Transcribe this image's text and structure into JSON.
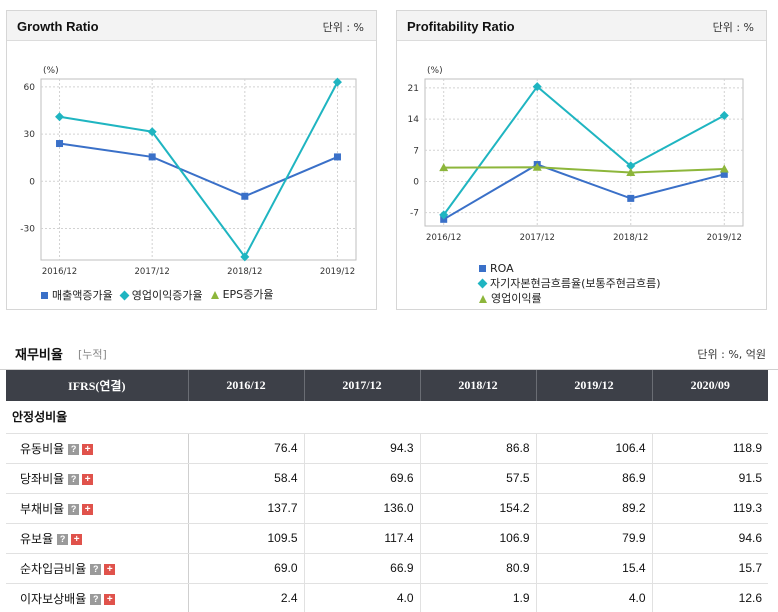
{
  "growth_panel": {
    "title": "Growth Ratio",
    "unit": "단위 : %"
  },
  "profit_panel": {
    "title": "Profitability Ratio",
    "unit": "단위 : %"
  },
  "chart_data": [
    {
      "type": "line",
      "y_unit_label": "(%)",
      "categories": [
        "2016/12",
        "2017/12",
        "2018/12",
        "2019/12"
      ],
      "ylim": [
        -50,
        65
      ],
      "yticks": [
        60,
        30,
        0,
        -30
      ],
      "grid": true,
      "legend_position": "bottom",
      "series": [
        {
          "name": "매출액증가율",
          "values": [
            24,
            15.5,
            -9.5,
            15.5
          ],
          "color": "#3a70c8",
          "marker": "square"
        },
        {
          "name": "영업이익증가율",
          "values": [
            41,
            31.5,
            -48,
            63
          ],
          "color": "#1fb5c1",
          "marker": "diamond"
        },
        {
          "name": "EPS증가율",
          "values": [
            null,
            null,
            null,
            null
          ],
          "color": "#8db63b",
          "marker": "triangle"
        }
      ]
    },
    {
      "type": "line",
      "y_unit_label": "(%)",
      "categories": [
        "2016/12",
        "2017/12",
        "2018/12",
        "2019/12"
      ],
      "ylim": [
        -10,
        23
      ],
      "yticks": [
        21,
        14,
        7,
        0,
        -7
      ],
      "grid": true,
      "legend_position": "bottom",
      "series": [
        {
          "name": "ROA",
          "values": [
            -8.5,
            3.8,
            -3.8,
            1.6
          ],
          "color": "#3a70c8",
          "marker": "square"
        },
        {
          "name": "자기자본현금흐름율(보통주현금흐름)",
          "values": [
            -7.5,
            21.3,
            3.5,
            14.8
          ],
          "color": "#1fb5c1",
          "marker": "diamond"
        },
        {
          "name": "영업이익률",
          "values": [
            3.1,
            3.2,
            2.0,
            2.8
          ],
          "color": "#8db63b",
          "marker": "triangle"
        }
      ]
    }
  ],
  "financial": {
    "title": "재무비율",
    "subtitle": "[누적]",
    "unit": "단위 : %, 억원",
    "header": [
      "IFRS(연결)",
      "2016/12",
      "2017/12",
      "2018/12",
      "2019/12",
      "2020/09"
    ],
    "section": "안정성비율",
    "help_icon": "?",
    "expand_icon": "+",
    "rows": [
      {
        "label": "유동비율",
        "values": [
          "76.4",
          "94.3",
          "86.8",
          "106.4",
          "118.9"
        ]
      },
      {
        "label": "당좌비율",
        "values": [
          "58.4",
          "69.6",
          "57.5",
          "86.9",
          "91.5"
        ]
      },
      {
        "label": "부채비율",
        "values": [
          "137.7",
          "136.0",
          "154.2",
          "89.2",
          "119.3"
        ]
      },
      {
        "label": "유보율",
        "values": [
          "109.5",
          "117.4",
          "106.9",
          "79.9",
          "94.6"
        ]
      },
      {
        "label": "순차입금비율",
        "values": [
          "69.0",
          "66.9",
          "80.9",
          "15.4",
          "15.7"
        ]
      },
      {
        "label": "이자보상배율",
        "values": [
          "2.4",
          "4.0",
          "1.9",
          "4.0",
          "12.6"
        ]
      }
    ]
  }
}
